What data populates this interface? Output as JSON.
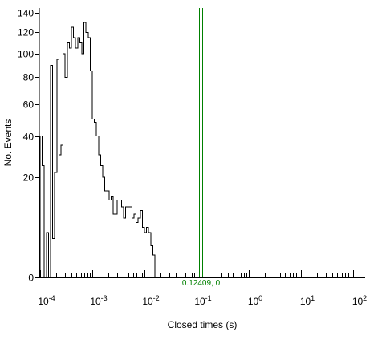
{
  "chart_data": {
    "type": "histogram",
    "xlabel": "Closed times (s)",
    "ylabel": "No. Events",
    "x_scale": "log",
    "y_scale": "sqrt",
    "xlim": [
      0.0001,
      100
    ],
    "ylim": [
      0,
      145
    ],
    "y_ticks": [
      0,
      20,
      40,
      60,
      80,
      100,
      120,
      140
    ],
    "x_ticks": [
      {
        "base": "10",
        "exp": "-4"
      },
      {
        "base": "10",
        "exp": "-3"
      },
      {
        "base": "10",
        "exp": "-2"
      },
      {
        "base": "10",
        "exp": "-1"
      },
      {
        "base": "10",
        "exp": "0"
      },
      {
        "base": "10",
        "exp": "1"
      },
      {
        "base": "10",
        "exp": "2"
      }
    ],
    "bin_start": 0.0001,
    "bins_per_decade": 25,
    "counts": [
      40,
      25,
      0,
      4,
      0,
      90,
      3,
      22,
      95,
      30,
      35,
      100,
      80,
      110,
      105,
      125,
      115,
      105,
      115,
      110,
      100,
      130,
      120,
      115,
      85,
      50,
      48,
      40,
      30,
      25,
      20,
      15,
      15,
      12,
      13,
      8,
      8,
      12,
      12,
      10,
      7,
      10,
      10,
      10,
      7,
      8,
      6,
      7,
      9,
      5,
      4,
      5,
      4,
      2,
      1
    ],
    "cursor": {
      "x": 0.12409,
      "label": "0.12409, 0",
      "color": "#008000"
    },
    "colors": {
      "histogram": "#000000",
      "cursor": "#008000",
      "axes": "#000000"
    }
  }
}
